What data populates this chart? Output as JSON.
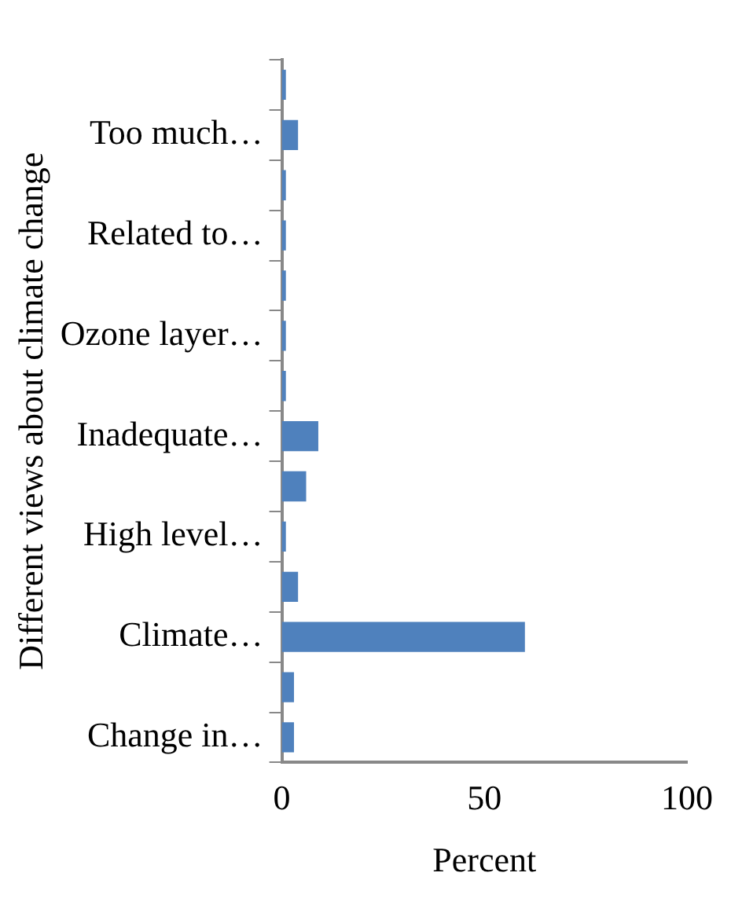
{
  "chart_data": {
    "type": "bar",
    "orientation": "horizontal",
    "xlabel": "Percent",
    "ylabel": "Different views about climate change",
    "categories": [
      null,
      "Too much…",
      null,
      "Related to…",
      null,
      "Ozone layer…",
      null,
      "Inadequate…",
      null,
      "High level…",
      null,
      "Climate…",
      null,
      "Change in…"
    ],
    "values": [
      1,
      4,
      1,
      1,
      1,
      1,
      1,
      9,
      6,
      1,
      4,
      60,
      3,
      3
    ],
    "color": "#4f81bd",
    "xlim": [
      0,
      100
    ],
    "xticks": [
      0,
      50,
      100
    ],
    "grid": false,
    "legend": false
  }
}
